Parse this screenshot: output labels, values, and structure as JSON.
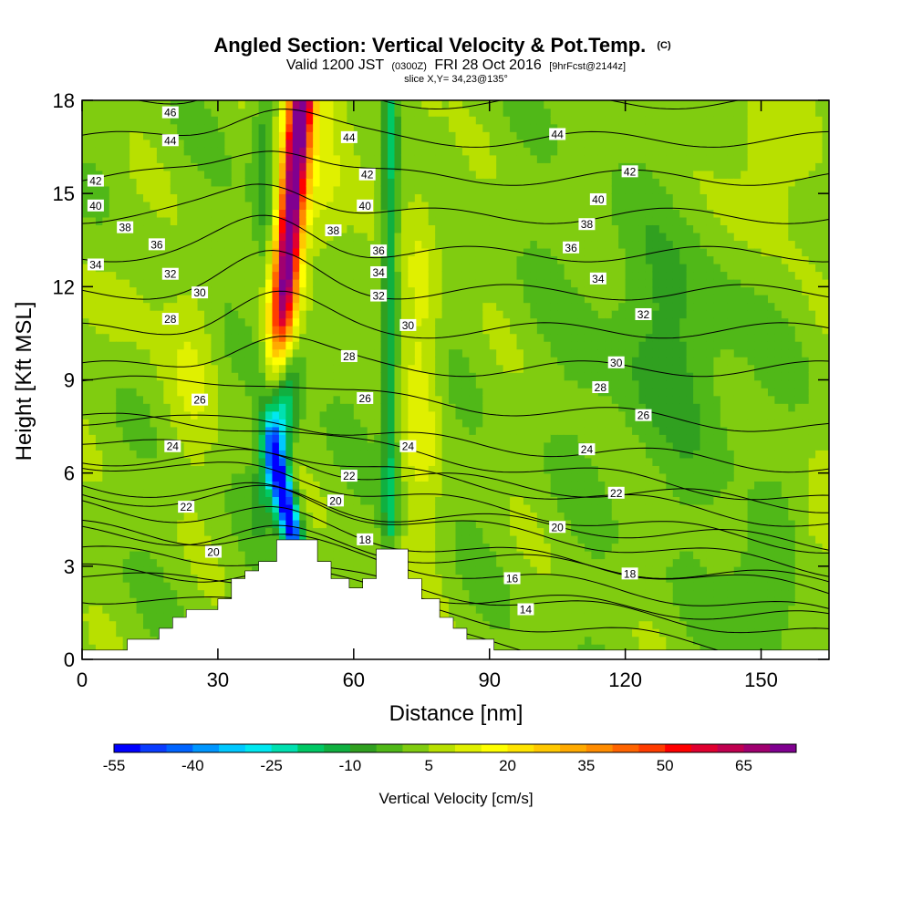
{
  "chart_data": {
    "type": "heatmap",
    "title": "Angled Section: Vertical Velocity & Pot.Temp.",
    "title_suffix": "(C)",
    "subtitle_parts": [
      "Valid 1200 JST",
      "(0300Z)",
      "FRI 28 Oct 2016",
      "[9hrFcst@2144z]"
    ],
    "slice_label": "slice X,Y= 34,23@135°",
    "xlabel": "Distance [nm]",
    "ylabel": "Height [Kft MSL]",
    "xlim": [
      0,
      165
    ],
    "ylim": [
      0,
      18
    ],
    "xticks": [
      0,
      30,
      60,
      90,
      120,
      150
    ],
    "yticks": [
      0,
      3,
      6,
      9,
      12,
      15,
      18
    ],
    "colorbar": {
      "title": "Vertical Velocity [cm/s]",
      "tick_labels": [
        -55,
        -40,
        -25,
        -10,
        5,
        20,
        35,
        50,
        65
      ],
      "min": -55,
      "max": 75,
      "step": 5,
      "colors": [
        "#0000ff",
        "#0a3cff",
        "#0064ff",
        "#0096ff",
        "#00c8ff",
        "#00e8f0",
        "#00e0b0",
        "#00c864",
        "#10b040",
        "#30a020",
        "#50b818",
        "#80cc10",
        "#b8e000",
        "#e0f000",
        "#ffff00",
        "#ffe400",
        "#ffc800",
        "#ffaa00",
        "#ff8c00",
        "#ff6400",
        "#ff3c00",
        "#ff0000",
        "#e00030",
        "#c00050",
        "#a00070",
        "#800090"
      ]
    },
    "terrain_nm_kft": [
      [
        0,
        0.3
      ],
      [
        10,
        0.3
      ],
      [
        10,
        0.65
      ],
      [
        17,
        0.65
      ],
      [
        17,
        1.0
      ],
      [
        20,
        1.0
      ],
      [
        20,
        1.35
      ],
      [
        23,
        1.35
      ],
      [
        23,
        1.6
      ],
      [
        30,
        1.6
      ],
      [
        30,
        1.95
      ],
      [
        33,
        1.95
      ],
      [
        33,
        2.6
      ],
      [
        36,
        2.6
      ],
      [
        36,
        2.85
      ],
      [
        39,
        2.85
      ],
      [
        39,
        3.15
      ],
      [
        43,
        3.15
      ],
      [
        43,
        3.85
      ],
      [
        52,
        3.85
      ],
      [
        52,
        3.15
      ],
      [
        55,
        3.15
      ],
      [
        55,
        2.6
      ],
      [
        59,
        2.6
      ],
      [
        59,
        2.3
      ],
      [
        62,
        2.3
      ],
      [
        62,
        2.6
      ],
      [
        65,
        2.6
      ],
      [
        65,
        3.55
      ],
      [
        72,
        3.55
      ],
      [
        72,
        2.6
      ],
      [
        75,
        2.6
      ],
      [
        75,
        1.95
      ],
      [
        79,
        1.95
      ],
      [
        79,
        1.35
      ],
      [
        82,
        1.35
      ],
      [
        82,
        1.0
      ],
      [
        85,
        1.0
      ],
      [
        85,
        0.65
      ],
      [
        91,
        0.65
      ],
      [
        91,
        0.3
      ],
      [
        165,
        0.3
      ]
    ],
    "theta_contour_labels": [
      {
        "value": "46",
        "x": 19.5,
        "y": 17.6
      },
      {
        "value": "44",
        "x": 19.5,
        "y": 16.7
      },
      {
        "value": "44",
        "x": 59,
        "y": 16.8
      },
      {
        "value": "44",
        "x": 105,
        "y": 16.9
      },
      {
        "value": "42",
        "x": 3,
        "y": 15.4
      },
      {
        "value": "42",
        "x": 63,
        "y": 15.6
      },
      {
        "value": "42",
        "x": 121,
        "y": 15.7
      },
      {
        "value": "40",
        "x": 3,
        "y": 14.6
      },
      {
        "value": "40",
        "x": 62.5,
        "y": 14.6
      },
      {
        "value": "40",
        "x": 114,
        "y": 14.8
      },
      {
        "value": "38",
        "x": 9.5,
        "y": 13.9
      },
      {
        "value": "38",
        "x": 55.5,
        "y": 13.8
      },
      {
        "value": "38",
        "x": 111.5,
        "y": 14.0
      },
      {
        "value": "36",
        "x": 16.5,
        "y": 13.35
      },
      {
        "value": "36",
        "x": 65.5,
        "y": 13.15
      },
      {
        "value": "36",
        "x": 108,
        "y": 13.25
      },
      {
        "value": "34",
        "x": 3,
        "y": 12.7
      },
      {
        "value": "34",
        "x": 65.5,
        "y": 12.45
      },
      {
        "value": "34",
        "x": 114,
        "y": 12.25
      },
      {
        "value": "32",
        "x": 19.5,
        "y": 12.4
      },
      {
        "value": "32",
        "x": 65.5,
        "y": 11.7
      },
      {
        "value": "32",
        "x": 124,
        "y": 11.1
      },
      {
        "value": "30",
        "x": 26,
        "y": 11.8
      },
      {
        "value": "30",
        "x": 72,
        "y": 10.75
      },
      {
        "value": "30",
        "x": 118,
        "y": 9.55
      },
      {
        "value": "28",
        "x": 19.5,
        "y": 10.95
      },
      {
        "value": "28",
        "x": 59,
        "y": 9.75
      },
      {
        "value": "28",
        "x": 114.5,
        "y": 8.75
      },
      {
        "value": "26",
        "x": 26,
        "y": 8.35
      },
      {
        "value": "26",
        "x": 62.5,
        "y": 8.4
      },
      {
        "value": "26",
        "x": 124,
        "y": 7.85
      },
      {
        "value": "24",
        "x": 20,
        "y": 6.85
      },
      {
        "value": "24",
        "x": 72,
        "y": 6.85
      },
      {
        "value": "24",
        "x": 111.5,
        "y": 6.75
      },
      {
        "value": "22",
        "x": 59,
        "y": 5.9
      },
      {
        "value": "22",
        "x": 23,
        "y": 4.9
      },
      {
        "value": "22",
        "x": 118,
        "y": 5.35
      },
      {
        "value": "20",
        "x": 56,
        "y": 5.1
      },
      {
        "value": "20",
        "x": 29,
        "y": 3.45
      },
      {
        "value": "20",
        "x": 105,
        "y": 4.25
      },
      {
        "value": "18",
        "x": 62.5,
        "y": 3.85
      },
      {
        "value": "18",
        "x": 121,
        "y": 2.75
      },
      {
        "value": "16",
        "x": 95,
        "y": 2.6
      },
      {
        "value": "14",
        "x": 98,
        "y": 1.6
      }
    ]
  }
}
